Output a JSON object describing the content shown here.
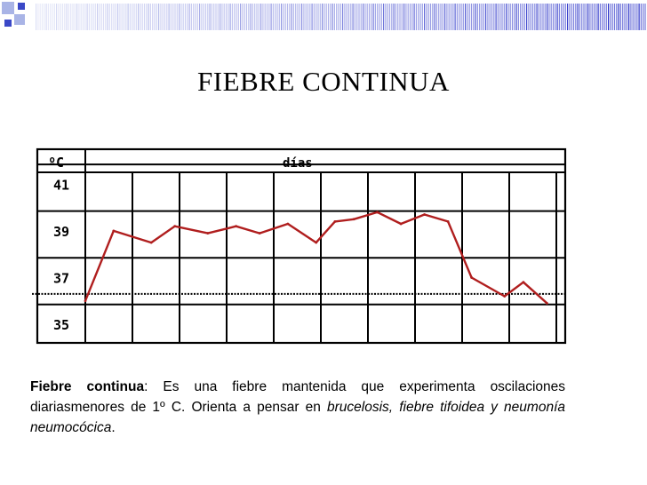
{
  "slide": {
    "title": "FIEBRE CONTINUA",
    "caption": {
      "term": "Fiebre continua",
      "text_1": ": Es una fiebre mantenida que experimenta oscilaciones diariasmenores de 1º C. Orienta a pensar en ",
      "emphasis": "brucelosis, fiebre tifoidea y neumonía neumocócica",
      "text_2": "."
    }
  },
  "colors": {
    "line": "#b01e1e",
    "grid": "#000000",
    "reference": "#000000"
  },
  "chart_data": {
    "type": "line",
    "title": "",
    "xlabel": "días",
    "ylabel": "ºC",
    "yticks": [
      "41",
      "39",
      "37",
      "35"
    ],
    "ytick_values": [
      41,
      39,
      37,
      35
    ],
    "ylim": [
      34.2,
      42.5
    ],
    "reference_line": 36.3,
    "grid": true,
    "day_columns": 10,
    "series": [
      {
        "x": [
          0,
          0.6,
          1.4,
          1.9,
          2.6,
          3.2,
          3.7,
          4.3,
          4.9,
          5.3,
          5.7,
          6.2,
          6.7,
          7.2,
          7.7,
          8.2,
          8.9,
          9.3,
          9.8
        ],
        "values": [
          36.0,
          39.0,
          38.5,
          39.2,
          38.9,
          39.2,
          38.9,
          39.3,
          38.5,
          39.4,
          39.5,
          39.8,
          39.3,
          39.7,
          39.4,
          37.0,
          36.2,
          36.8,
          35.9
        ]
      }
    ]
  }
}
